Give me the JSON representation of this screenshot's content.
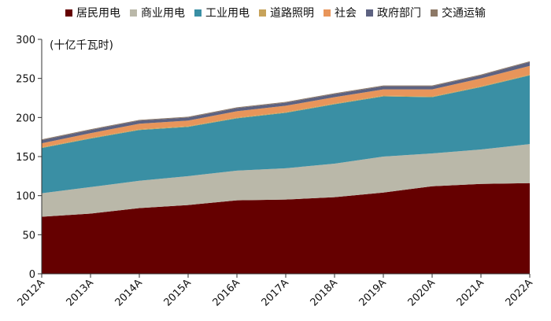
{
  "chart_data": {
    "type": "area",
    "stacked": true,
    "unit_label": "(十亿千瓦时)",
    "categories": [
      "2012A",
      "2013A",
      "2014A",
      "2015A",
      "2016A",
      "2017A",
      "2018A",
      "2019A",
      "2020A",
      "2021A",
      "2022A"
    ],
    "ylim": [
      0,
      300
    ],
    "yticks": [
      0,
      50,
      100,
      150,
      200,
      250,
      300
    ],
    "legend_position": "top-center",
    "series": [
      {
        "name": "居民用电",
        "color": "#650000",
        "values": [
          73,
          77,
          84,
          88,
          94,
          95,
          98,
          104,
          112,
          115,
          116
        ]
      },
      {
        "name": "商业用电",
        "color": "#bab8a9",
        "values": [
          30,
          34,
          35,
          37,
          38,
          40,
          43,
          46,
          42,
          44,
          50
        ]
      },
      {
        "name": "工业用电",
        "color": "#3a8fa4",
        "values": [
          58,
          62,
          65,
          63,
          67,
          71,
          76,
          77,
          72,
          80,
          88
        ]
      },
      {
        "name": "道路照明",
        "color": "#c7a35a",
        "values": [
          1,
          1,
          1,
          1,
          1,
          1,
          1,
          1,
          1,
          1,
          1
        ]
      },
      {
        "name": "社会",
        "color": "#e8955a",
        "values": [
          5,
          6,
          7,
          7,
          8,
          8,
          8,
          8,
          9,
          10,
          11
        ]
      },
      {
        "name": "政府部门",
        "color": "#5d6281",
        "values": [
          4,
          4,
          4,
          4,
          4,
          4,
          4,
          4,
          4,
          4,
          5
        ]
      },
      {
        "name": "交通运输",
        "color": "#8d7967",
        "values": [
          1,
          1,
          1,
          1,
          1,
          1,
          1,
          1,
          1,
          1,
          1
        ]
      }
    ]
  }
}
